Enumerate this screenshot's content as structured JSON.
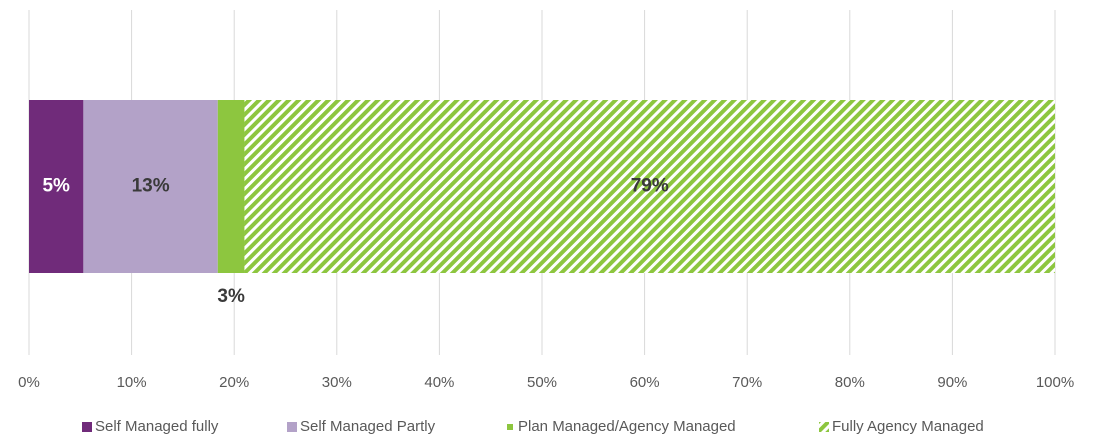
{
  "chart_data": {
    "type": "stacked-barh",
    "categories": [
      null
    ],
    "series": [
      {
        "name": "Self Managed fully",
        "color": "#702b7a",
        "values": [
          5.3
        ],
        "value_labels": [
          "5%"
        ]
      },
      {
        "name": "Self Managed Partly",
        "color": "#b3a2c8",
        "values": [
          13.1
        ],
        "value_labels": [
          "13%"
        ]
      },
      {
        "name": "Plan Managed/Agency Managed",
        "color": "#8dc63f",
        "values": [
          2.6
        ],
        "value_labels": [
          "3%"
        ]
      },
      {
        "name": "Fully Agency Managed",
        "color": "#8dc63f",
        "pattern": "hatch",
        "values": [
          79
        ],
        "value_labels": [
          "79%"
        ]
      }
    ],
    "xlim": [
      0,
      100
    ],
    "xticks": [
      {
        "value": 0,
        "label": "0%"
      },
      {
        "value": 10,
        "label": "10%"
      },
      {
        "value": 20,
        "label": "20%"
      },
      {
        "value": 30,
        "label": "30%"
      },
      {
        "value": 40,
        "label": "40%"
      },
      {
        "value": 50,
        "label": "50%"
      },
      {
        "value": 60,
        "label": "60%"
      },
      {
        "value": 70,
        "label": "70%"
      },
      {
        "value": 80,
        "label": "80%"
      },
      {
        "value": 90,
        "label": "90%"
      },
      {
        "value": 100,
        "label": "100%"
      }
    ],
    "grid": true,
    "legend": "bottom"
  }
}
